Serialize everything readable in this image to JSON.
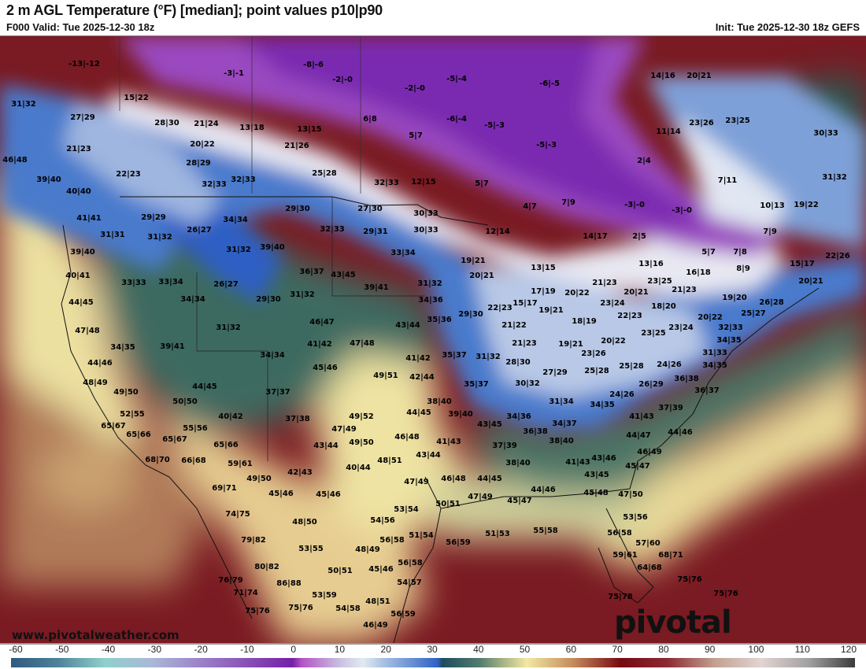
{
  "header": {
    "title": "2 m AGL Temperature (°F) [median]; point values p10|p90",
    "valid": "F000 Valid: Tue 2025-12-30 18z",
    "init": "Init: Tue 2025-12-30 18z GEFS"
  },
  "watermark": {
    "url": "www.pivotalweather.com",
    "brand": "pivotal weather"
  },
  "colorbar": {
    "unit": "°F",
    "ticks": [
      "-60",
      "-50",
      "-40",
      "-30",
      "-20",
      "-10",
      "0",
      "10",
      "20",
      "30",
      "40",
      "50",
      "60",
      "70",
      "80",
      "90",
      "100",
      "110",
      "120"
    ],
    "stops": [
      {
        "value": -60,
        "color": "#2e5a80"
      },
      {
        "value": -50,
        "color": "#4f8299"
      },
      {
        "value": -40,
        "color": "#8fd0cc"
      },
      {
        "value": -30,
        "color": "#aab8d8"
      },
      {
        "value": -20,
        "color": "#9c84c8"
      },
      {
        "value": -10,
        "color": "#8a52b8"
      },
      {
        "value": 0,
        "color": "#7420a8"
      },
      {
        "value": 2,
        "color": "#b454c4"
      },
      {
        "value": 10,
        "color": "#c8bfe0"
      },
      {
        "value": 15,
        "color": "#e2eaf2"
      },
      {
        "value": 20,
        "color": "#a3bce2"
      },
      {
        "value": 31,
        "color": "#2f62c4"
      },
      {
        "value": 32,
        "color": "#1d4c5e"
      },
      {
        "value": 40,
        "color": "#537c70"
      },
      {
        "value": 45,
        "color": "#a7b484"
      },
      {
        "value": 50,
        "color": "#f2e8a2"
      },
      {
        "value": 60,
        "color": "#c48a5c"
      },
      {
        "value": 70,
        "color": "#760a12"
      },
      {
        "value": 80,
        "color": "#8c2a34"
      },
      {
        "value": 90,
        "color": "#c2a090"
      },
      {
        "value": 100,
        "color": "#e2d4d2"
      },
      {
        "value": 110,
        "color": "#a2a2a2"
      },
      {
        "value": 120,
        "color": "#3c3c3c"
      }
    ]
  },
  "point_values": [
    "-13|-12",
    "-3|-1",
    "31|32",
    "15|22",
    "27|29",
    "28|30",
    "21|24",
    "13|18",
    "21|23",
    "20|22",
    "46|48",
    "28|29",
    "22|23",
    "32|33",
    "32|33",
    "39|40",
    "40|40",
    "41|41",
    "29|29",
    "34|34",
    "26|27",
    "31|31",
    "31|32",
    "-8|-6",
    "-2|-0",
    "-5|-4",
    "-2|-0",
    "-6|-5",
    "6|8",
    "-6|-4",
    "13|15",
    "5|7",
    "-5|-3",
    "-5|-3",
    "21|26",
    "25|28",
    "32|33",
    "12|15",
    "5|7",
    "29|30",
    "27|30",
    "30|33",
    "4|7",
    "7|9",
    "32|33",
    "29|31",
    "30|33",
    "12|14",
    "14|16",
    "20|21",
    "23|26",
    "23|25",
    "11|14",
    "30|33",
    "2|4",
    "7|11",
    "31|32",
    "-3|-0",
    "-3|-0",
    "10|13",
    "19|22",
    "14|17",
    "2|5",
    "7|9",
    "5|7",
    "7|8",
    "13|16",
    "16|18",
    "8|9",
    "15|17",
    "22|26",
    "21|23",
    "23|25",
    "21|23",
    "20|21",
    "20|21",
    "19|20",
    "23|24",
    "26|28",
    "18|20",
    "22|23",
    "25|27",
    "20|22",
    "18|19",
    "23|24",
    "23|25",
    "20|22",
    "32|33",
    "31|33",
    "34|35",
    "23|26",
    "25|28",
    "25|28",
    "24|26",
    "34|35",
    "36|38",
    "26|29",
    "36|37",
    "24|26",
    "34|35",
    "37|39",
    "41|43",
    "44|46",
    "44|47",
    "39|40",
    "40|41",
    "31|32",
    "39|40",
    "33|33",
    "33|34",
    "26|27",
    "44|45",
    "34|34",
    "29|30",
    "47|48",
    "31|32",
    "34|35",
    "39|41",
    "44|46",
    "34|34",
    "48|49",
    "44|45",
    "49|50",
    "37|37",
    "50|50",
    "52|55",
    "40|42",
    "65|67",
    "55|56",
    "65|66",
    "65|67",
    "33|34",
    "19|21",
    "13|15",
    "36|37",
    "43|45",
    "20|21",
    "39|41",
    "31|32",
    "17|19",
    "20|22",
    "31|32",
    "34|36",
    "15|17",
    "22|23",
    "29|30",
    "19|21",
    "35|36",
    "46|47",
    "43|44",
    "21|22",
    "47|48",
    "41|42",
    "21|23",
    "19|21",
    "41|42",
    "35|37",
    "31|32",
    "28|30",
    "45|46",
    "49|51",
    "42|44",
    "27|29",
    "35|37",
    "30|32",
    "31|34",
    "38|40",
    "44|45",
    "39|40",
    "43|45",
    "34|36",
    "36|38",
    "34|37",
    "37|38",
    "49|52",
    "47|49",
    "43|44",
    "49|50",
    "46|48",
    "41|43",
    "37|39",
    "38|40",
    "43|44",
    "48|51",
    "38|40",
    "41|43",
    "42|43",
    "40|44",
    "47|49",
    "46|48",
    "44|45",
    "44|46",
    "45|46",
    "50|51",
    "47|49",
    "45|47",
    "53|54",
    "48|50",
    "54|56",
    "51|54",
    "51|53",
    "55|58",
    "56|58",
    "56|59",
    "53|55",
    "48|49",
    "56|58",
    "50|51",
    "45|46",
    "54|57",
    "53|59",
    "48|51",
    "54|58",
    "56|59",
    "46|49",
    "75|76",
    "86|88",
    "65|66",
    "68|70",
    "66|68",
    "59|61",
    "49|50",
    "69|71",
    "45|46",
    "74|75",
    "79|82",
    "80|82",
    "76|79",
    "71|74",
    "75|76",
    "43|46",
    "46|49",
    "43|45",
    "45|47",
    "45|48",
    "47|50",
    "53|56",
    "56|58",
    "57|60",
    "59|61",
    "68|71",
    "64|68",
    "75|76",
    "75|76",
    "75|78"
  ]
}
